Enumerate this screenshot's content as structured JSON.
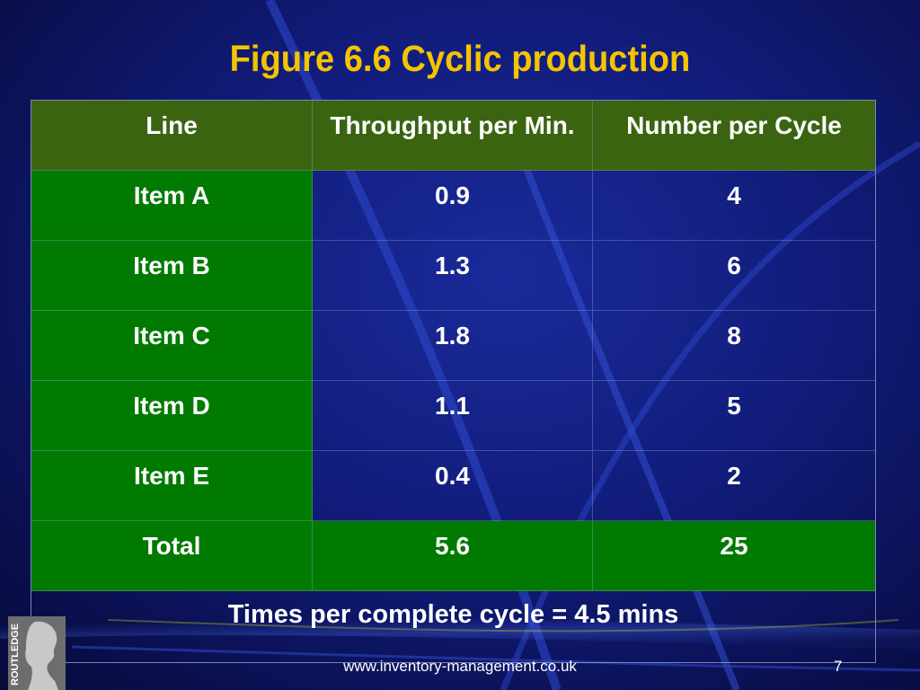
{
  "title": "Figure 6.6  Cyclic production",
  "table": {
    "headers": [
      "Line",
      "Throughput per Min.",
      "Number per Cycle"
    ],
    "rows": [
      [
        "Item A",
        "0.9",
        "4"
      ],
      [
        "Item B",
        "1.3",
        "6"
      ],
      [
        "Item C",
        "1.8",
        "8"
      ],
      [
        "Item D",
        "1.1",
        "5"
      ],
      [
        "Item E",
        "0.4",
        "2"
      ]
    ],
    "total": [
      "Total",
      "5.6",
      "25"
    ],
    "footer": "Times per complete cycle = 4.5 mins"
  },
  "logo_text": "ROUTLEDGE",
  "url": "www.inventory-management.co.uk",
  "page_number": "7",
  "colors": {
    "title": "#f5c400",
    "header_bg": "#3a6410",
    "green_cells": "#007a00",
    "background": "#111c7a"
  }
}
